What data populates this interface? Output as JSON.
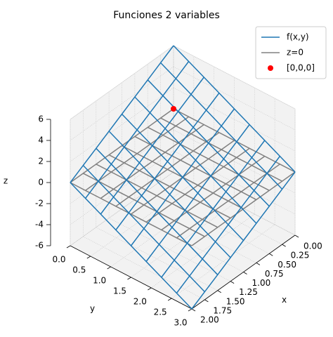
{
  "chart_data": {
    "type": "wireframe3d",
    "title": "Funciones 2 variables",
    "xlabel": "x",
    "ylabel": "y",
    "zlabel": "z",
    "xlim": [
      0,
      2
    ],
    "ylim": [
      0,
      3
    ],
    "zlim": [
      -6,
      6
    ],
    "xticks": [
      {
        "value": 0,
        "label": "0.00"
      },
      {
        "value": 0.25,
        "label": "0.25"
      },
      {
        "value": 0.5,
        "label": "0.50"
      },
      {
        "value": 0.75,
        "label": "0.75"
      },
      {
        "value": 1,
        "label": "1.00"
      },
      {
        "value": 1.25,
        "label": "1.25"
      },
      {
        "value": 1.5,
        "label": "1.50"
      },
      {
        "value": 1.75,
        "label": "1.75"
      },
      {
        "value": 2,
        "label": "2.00"
      }
    ],
    "yticks": [
      {
        "value": 0,
        "label": "0.0"
      },
      0.5,
      {
        "value": 1,
        "label": "1.0"
      },
      1.5,
      {
        "value": 2,
        "label": "2.0"
      },
      2.5,
      {
        "value": 3,
        "label": "3.0"
      }
    ],
    "zticks": [
      -6,
      -4,
      -2,
      0,
      2,
      4,
      6
    ],
    "grid": true,
    "legend": "upper right",
    "series": [
      {
        "name": "f(x,y)",
        "type": "wireframe",
        "color": "#1f77b4",
        "x": [
          0,
          0.25,
          0.5,
          0.75,
          1,
          1.25,
          1.5,
          1.75,
          2
        ],
        "y": [
          0,
          0.375,
          0.75,
          1.125,
          1.5,
          1.875,
          2.25,
          2.625,
          3
        ],
        "z": [
          [
            6,
            5.25,
            4.5,
            3.75,
            3,
            2.25,
            1.5,
            0.75,
            0
          ],
          [
            5.25,
            4.5,
            3.75,
            3,
            2.25,
            1.5,
            0.75,
            0,
            -0.75
          ],
          [
            4.5,
            3.75,
            3,
            2.25,
            1.5,
            0.75,
            0,
            -0.75,
            -1.5
          ],
          [
            3.75,
            3,
            2.25,
            1.5,
            0.75,
            0,
            -0.75,
            -1.5,
            -2.25
          ],
          [
            3,
            2.25,
            1.5,
            0.75,
            0,
            -0.75,
            -1.5,
            -2.25,
            -3
          ],
          [
            2.25,
            1.5,
            0.75,
            0,
            -0.75,
            -1.5,
            -2.25,
            -3,
            -3.75
          ],
          [
            1.5,
            0.75,
            0,
            -0.75,
            -1.5,
            -2.25,
            -3,
            -3.75,
            -4.5
          ],
          [
            0.75,
            0,
            -0.75,
            -1.5,
            -2.25,
            -3,
            -3.75,
            -4.5,
            -5.25
          ],
          [
            0,
            -0.75,
            -1.5,
            -2.25,
            -3,
            -3.75,
            -4.5,
            -5.25,
            -6
          ]
        ]
      },
      {
        "name": "z=0",
        "type": "wireframe",
        "color": "#808080",
        "x": [
          0,
          0.25,
          0.5,
          0.75,
          1,
          1.25,
          1.5,
          1.75,
          2
        ],
        "y": [
          0,
          0.375,
          0.75,
          1.125,
          1.5,
          1.875,
          2.25,
          2.625,
          3
        ],
        "z": [
          [
            0,
            0,
            0,
            0,
            0,
            0,
            0,
            0,
            0
          ],
          [
            0,
            0,
            0,
            0,
            0,
            0,
            0,
            0,
            0
          ],
          [
            0,
            0,
            0,
            0,
            0,
            0,
            0,
            0,
            0
          ],
          [
            0,
            0,
            0,
            0,
            0,
            0,
            0,
            0,
            0
          ],
          [
            0,
            0,
            0,
            0,
            0,
            0,
            0,
            0,
            0
          ],
          [
            0,
            0,
            0,
            0,
            0,
            0,
            0,
            0,
            0
          ],
          [
            0,
            0,
            0,
            0,
            0,
            0,
            0,
            0,
            0
          ],
          [
            0,
            0,
            0,
            0,
            0,
            0,
            0,
            0,
            0
          ],
          [
            0,
            0,
            0,
            0,
            0,
            0,
            0,
            0,
            0
          ]
        ]
      },
      {
        "name": "[0,0,0]",
        "type": "scatter",
        "color": "#ff0000",
        "x": [
          0
        ],
        "y": [
          0
        ],
        "z": [
          0
        ]
      }
    ]
  }
}
